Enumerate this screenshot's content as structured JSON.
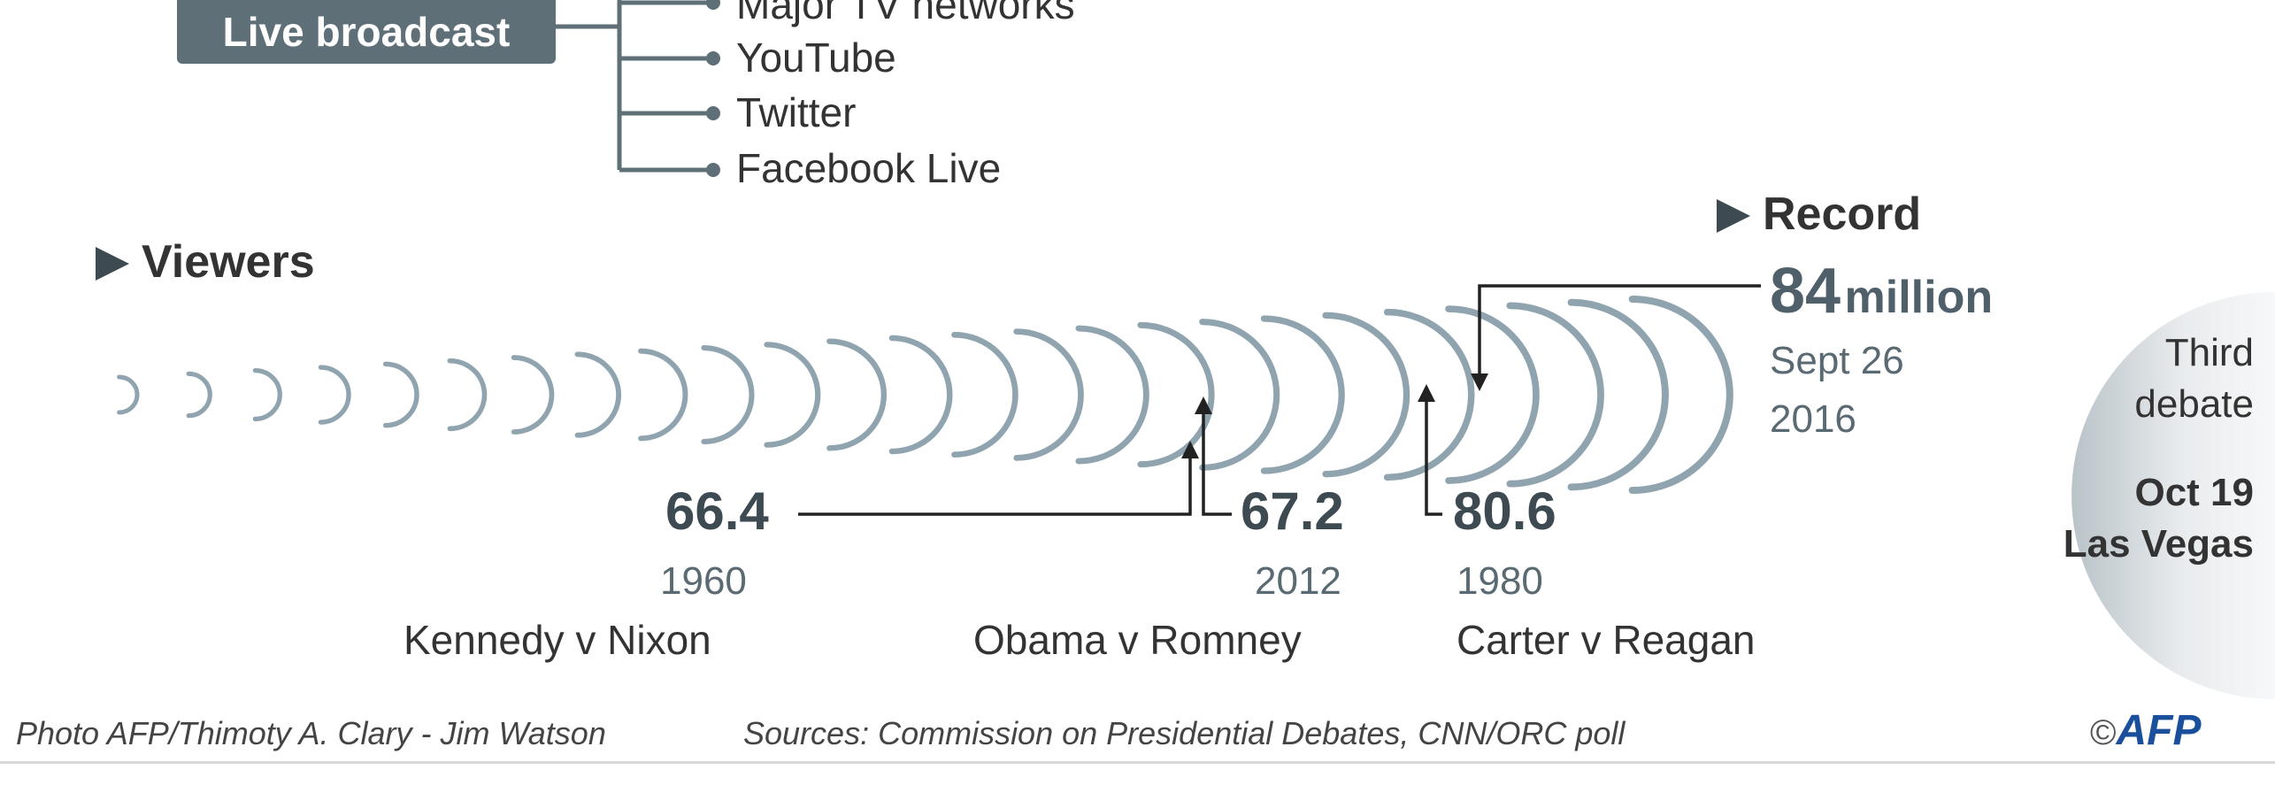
{
  "live": {
    "label": "Live broadcast",
    "items": [
      "Major TV networks",
      "YouTube",
      "Twitter",
      "Facebook Live"
    ]
  },
  "viewers": {
    "title": "Viewers",
    "debates": [
      {
        "value": "66.4",
        "year": "1960",
        "matchup": "Kennedy v Nixon"
      },
      {
        "value": "67.2",
        "year": "2012",
        "matchup": "Obama v Romney"
      },
      {
        "value": "80.6",
        "year": "1980",
        "matchup": "Carter v Reagan"
      }
    ],
    "record": {
      "label": "Record",
      "value": "84",
      "unit": "million",
      "date_line1": "Sept 26",
      "date_line2": "2016"
    }
  },
  "third_debate": {
    "line1": "Third",
    "line2": "debate",
    "date": "Oct 19",
    "place": "Las Vegas"
  },
  "footer": {
    "photo_credit": "Photo AFP/Thimoty A. Clary - Jim Watson",
    "sources": "Sources: Commission on Presidential Debates, CNN/ORC poll",
    "copyright": "©",
    "brand": "AFP"
  },
  "colors": {
    "arc": "#8fa4ae",
    "dark": "#3d4a52",
    "accent": "#5e6f78"
  }
}
